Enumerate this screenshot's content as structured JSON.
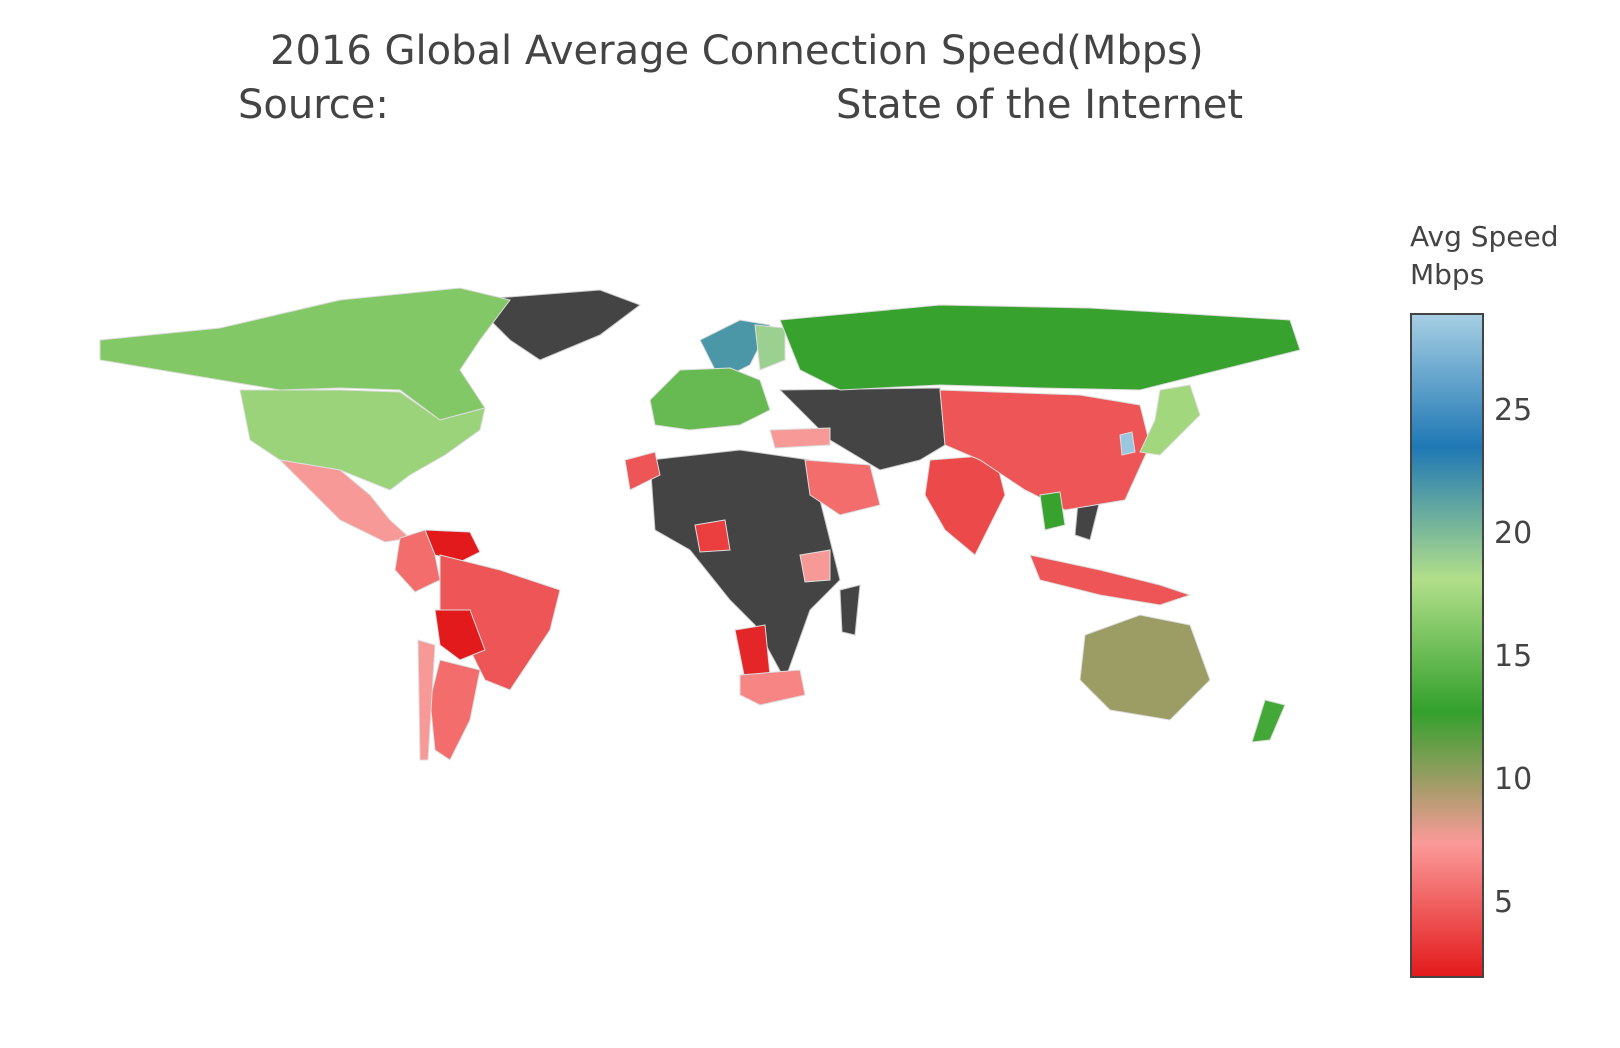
{
  "chart_data": {
    "type": "choropleth",
    "title": "2016 Global Average Connection Speed(Mbps)",
    "source_label": "Source:",
    "source_value": "State of the Internet",
    "colorbar": {
      "title_line1": "Avg Speed",
      "title_line2": "Mbps",
      "range": [
        2,
        29
      ],
      "ticks": [
        "25",
        "20",
        "15",
        "10",
        "5"
      ],
      "tick_values": [
        25,
        20,
        15,
        10,
        5
      ],
      "colors": [
        "#e31a1c",
        "#fb9a99",
        "#33a02c",
        "#b2df8a",
        "#1f78b4",
        "#a6cee3"
      ]
    },
    "no_data_color": "#444444",
    "regions": [
      {
        "region": "Canada",
        "value": 16.2
      },
      {
        "region": "United States",
        "value": 17.2
      },
      {
        "region": "Mexico",
        "value": 7.5
      },
      {
        "region": "Venezuela",
        "value": 2.0
      },
      {
        "region": "Colombia",
        "value": 5.5
      },
      {
        "region": "Brazil",
        "value": 4.5
      },
      {
        "region": "Bolivia",
        "value": 2.0
      },
      {
        "region": "Argentina",
        "value": 5.5
      },
      {
        "region": "Chile",
        "value": 7.5
      },
      {
        "region": "Sweden",
        "value": 22.0
      },
      {
        "region": "Finland",
        "value": 19.0
      },
      {
        "region": "Russia",
        "value": 13.0
      },
      {
        "region": "Western Europe",
        "value": 15.0
      },
      {
        "region": "Turkey",
        "value": 7.5
      },
      {
        "region": "Morocco",
        "value": 4.5
      },
      {
        "region": "Nigeria",
        "value": 3.5
      },
      {
        "region": "Kenya",
        "value": 7.5
      },
      {
        "region": "Namibia",
        "value": 2.5
      },
      {
        "region": "South Africa",
        "value": 6.5
      },
      {
        "region": "Saudi Arabia",
        "value": 5.5
      },
      {
        "region": "India",
        "value": 4.0
      },
      {
        "region": "China",
        "value": 4.5
      },
      {
        "region": "Japan",
        "value": 17.5
      },
      {
        "region": "South Korea",
        "value": 28.5
      },
      {
        "region": "Thailand",
        "value": 13.0
      },
      {
        "region": "Indonesia",
        "value": 4.5
      },
      {
        "region": "Australia",
        "value": 10.0
      },
      {
        "region": "New Zealand",
        "value": 13.5
      }
    ]
  }
}
